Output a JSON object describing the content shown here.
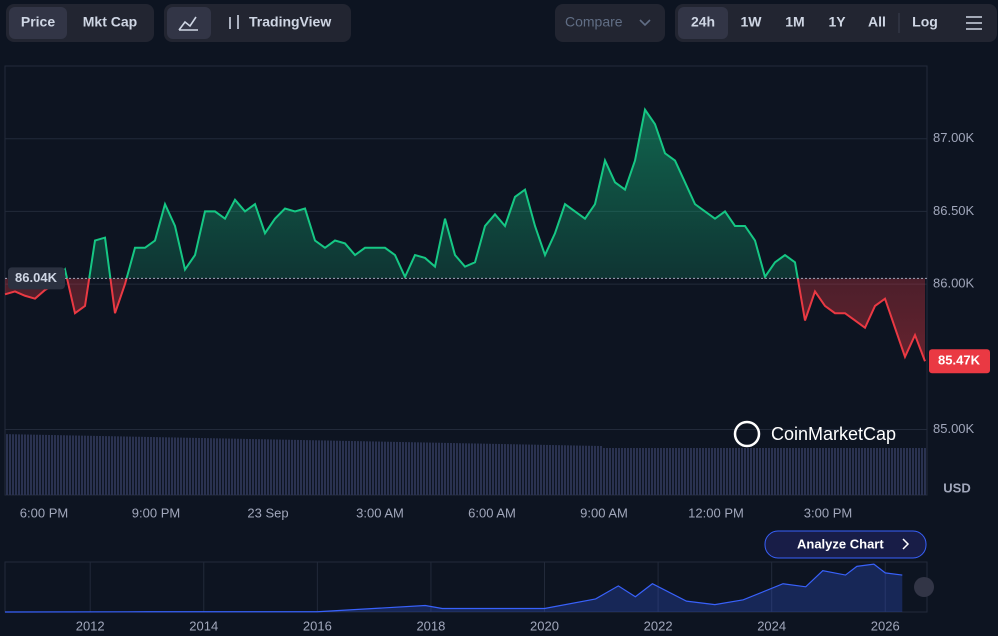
{
  "ui": {
    "price": "Price",
    "mkt_cap": "Mkt Cap",
    "tradingview": "TradingView",
    "compare": "Compare",
    "ranges": [
      "24h",
      "1W",
      "1M",
      "1Y",
      "All"
    ],
    "log": "Log",
    "brand": "CoinMarketCap",
    "analyze": "Analyze Chart",
    "currency": "USD"
  },
  "chart_data": [
    {
      "type": "line",
      "xlim": [
        0,
        92
      ],
      "ylim": [
        84.55,
        87.5
      ],
      "yticks": [
        {
          "value": 85,
          "label": "85.00K"
        },
        {
          "value": 86,
          "label": "86.00K"
        },
        {
          "value": 86.5,
          "label": "86.50K"
        },
        {
          "value": 87,
          "label": "87.00K"
        }
      ],
      "xticks": [
        {
          "value": 3.9,
          "label": "6:00 PM"
        },
        {
          "value": 15.1,
          "label": "9:00 PM"
        },
        {
          "value": 26.3,
          "label": "23 Sep"
        },
        {
          "value": 37.5,
          "label": "3:00 AM"
        },
        {
          "value": 48.7,
          "label": "6:00 AM"
        },
        {
          "value": 59.9,
          "label": "9:00 AM"
        },
        {
          "value": 71.1,
          "label": "12:00 PM"
        },
        {
          "value": 82.3,
          "label": "3:00 PM"
        }
      ],
      "reference": {
        "value": 86.04,
        "label": "86.04K"
      },
      "last": {
        "value": 85.47,
        "label": "85.47K"
      },
      "up_color": "#16c784",
      "down_color": "#ea3943",
      "grid": true,
      "values": [
        85.93,
        85.95,
        85.92,
        85.9,
        85.96,
        86.0,
        86.1,
        85.8,
        85.85,
        86.3,
        86.32,
        85.8,
        86.0,
        86.25,
        86.25,
        86.3,
        86.55,
        86.4,
        86.1,
        86.2,
        86.5,
        86.5,
        86.45,
        86.58,
        86.5,
        86.55,
        86.35,
        86.45,
        86.52,
        86.5,
        86.52,
        86.3,
        86.25,
        86.3,
        86.28,
        86.2,
        86.25,
        86.25,
        86.25,
        86.2,
        86.05,
        86.2,
        86.18,
        86.12,
        86.45,
        86.2,
        86.12,
        86.15,
        86.4,
        86.48,
        86.4,
        86.6,
        86.65,
        86.4,
        86.2,
        86.35,
        86.55,
        86.5,
        86.45,
        86.55,
        86.85,
        86.7,
        86.65,
        86.85,
        87.2,
        87.1,
        86.9,
        86.85,
        86.7,
        86.55,
        86.5,
        86.45,
        86.5,
        86.4,
        86.4,
        86.3,
        86.05,
        86.15,
        86.2,
        86.15,
        85.75,
        85.95,
        85.85,
        85.8,
        85.8,
        85.75,
        85.7,
        85.85,
        85.9,
        85.7,
        85.5,
        85.65,
        85.47
      ]
    },
    {
      "type": "area",
      "xlim": [
        2010.5,
        2026.7
      ],
      "ylim": [
        0,
        115
      ],
      "color": "#3861fb",
      "xticks": [
        2012,
        2014,
        2016,
        2018,
        2020,
        2022,
        2024,
        2026
      ],
      "x": [
        2010.5,
        2013,
        2016,
        2017.9,
        2018.2,
        2019.5,
        2020,
        2020.9,
        2021.3,
        2021.6,
        2021.9,
        2022.5,
        2023,
        2023.5,
        2024.2,
        2024.6,
        2024.9,
        2025.3,
        2025.5,
        2025.8,
        2026,
        2026.3
      ],
      "values": [
        0,
        0.5,
        0.5,
        15,
        8,
        8,
        8,
        30,
        60,
        35,
        65,
        25,
        17,
        28,
        65,
        58,
        95,
        85,
        105,
        110,
        90,
        85
      ]
    }
  ]
}
